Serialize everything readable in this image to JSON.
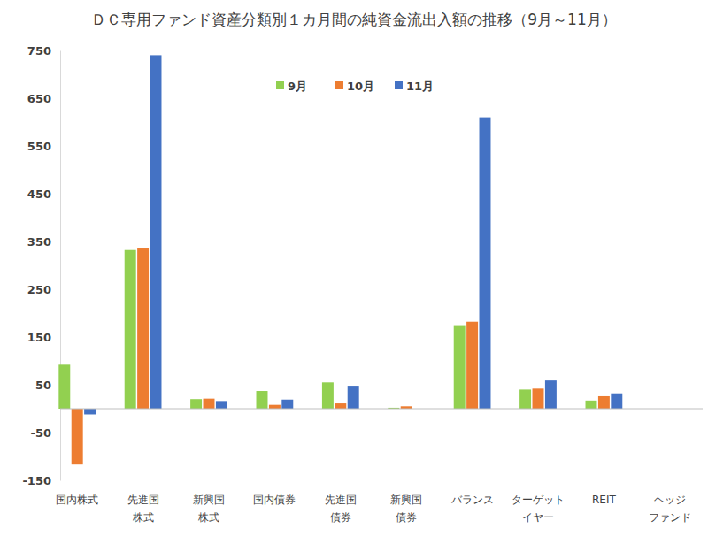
{
  "chart_data": {
    "type": "bar",
    "title": "ＤＣ専用ファンド資産分類別１カ月間の純資金流出入額の推移（9月～11月）",
    "categories": [
      "国内株式",
      "先進国\n株式",
      "新興国\n株式",
      "国内債券",
      "先進国\n債券",
      "新興国\n債券",
      "バランス",
      "ターゲット\nイヤー",
      "REIT",
      "ヘッジ\nファンド"
    ],
    "series": [
      {
        "name": "9月",
        "color": "#92d050",
        "values": [
          92,
          332,
          20,
          37,
          55,
          2,
          173,
          40,
          17,
          0
        ]
      },
      {
        "name": "10月",
        "color": "#ed7d31",
        "values": [
          -117,
          337,
          21,
          8,
          11,
          5,
          182,
          42,
          26,
          0
        ]
      },
      {
        "name": "11月",
        "color": "#4472c4",
        "values": [
          -12,
          740,
          16,
          19,
          48,
          0,
          610,
          59,
          32,
          0
        ]
      }
    ],
    "ylim": [
      -150,
      750
    ],
    "yticks": [
      -150,
      -50,
      50,
      150,
      250,
      350,
      450,
      550,
      650,
      750
    ],
    "legend": "top",
    "grid": false
  }
}
